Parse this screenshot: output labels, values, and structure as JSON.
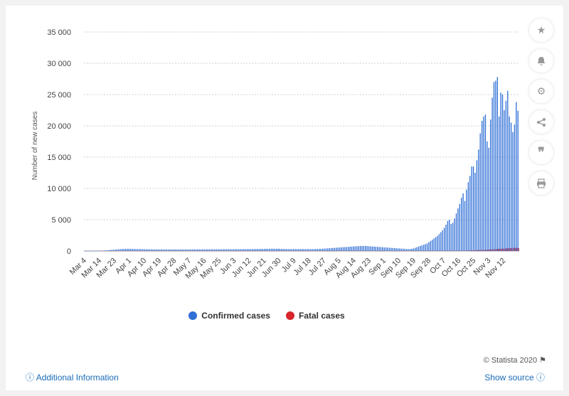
{
  "chart_data": {
    "type": "bar",
    "ylabel": "Number of new cases",
    "ylim": [
      0,
      35000
    ],
    "yticks": [
      0,
      5000,
      10000,
      15000,
      20000,
      25000,
      30000,
      35000
    ],
    "ytick_labels": [
      "0",
      "5 000",
      "10 000",
      "15 000",
      "20 000",
      "25 000",
      "30 000",
      "35 000"
    ],
    "xtick_labels": [
      "Mar 4",
      "Mar 14",
      "Mar 23",
      "Apr 1",
      "Apr 10",
      "Apr 19",
      "Apr 28",
      "May 7",
      "May 16",
      "May 25",
      "Jun 3",
      "Jun 12",
      "Jun 21",
      "Jun 30",
      "Jul 9",
      "Jul 18",
      "Jul 27",
      "Aug 5",
      "Aug 14",
      "Aug 23",
      "Sep 1",
      "Sep 10",
      "Sep 19",
      "Sep 28",
      "Oct 7",
      "Oct 16",
      "Oct 25",
      "Nov 3",
      "Nov 12"
    ],
    "grid": true,
    "legend_position": "bottom",
    "series": [
      {
        "name": "Confirmed cases",
        "color": "#2f6fd6",
        "values": [
          5,
          5,
          8,
          10,
          12,
          15,
          20,
          25,
          30,
          40,
          50,
          60,
          80,
          100,
          120,
          150,
          180,
          200,
          220,
          250,
          280,
          300,
          320,
          330,
          340,
          350,
          350,
          340,
          330,
          320,
          310,
          300,
          300,
          300,
          290,
          280,
          270,
          270,
          260,
          260,
          250,
          250,
          250,
          250,
          250,
          250,
          250,
          250,
          240,
          240,
          240,
          240,
          240,
          240,
          240,
          240,
          240,
          240,
          240,
          250,
          250,
          250,
          250,
          260,
          260,
          260,
          260,
          260,
          260,
          260,
          260,
          260,
          270,
          270,
          270,
          270,
          270,
          270,
          270,
          270,
          270,
          280,
          280,
          280,
          280,
          280,
          280,
          280,
          280,
          280,
          280,
          280,
          280,
          290,
          290,
          300,
          300,
          300,
          310,
          310,
          320,
          320,
          330,
          330,
          340,
          340,
          350,
          350,
          350,
          360,
          360,
          360,
          360,
          360,
          350,
          340,
          330,
          320,
          310,
          300,
          300,
          300,
          300,
          300,
          300,
          300,
          300,
          300,
          300,
          300,
          300,
          300,
          300,
          300,
          310,
          320,
          330,
          340,
          350,
          360,
          380,
          400,
          420,
          440,
          460,
          480,
          500,
          520,
          540,
          560,
          580,
          600,
          620,
          640,
          660,
          680,
          700,
          720,
          740,
          760,
          780,
          800,
          800,
          800,
          800,
          780,
          760,
          740,
          720,
          700,
          680,
          660,
          640,
          620,
          600,
          580,
          560,
          540,
          520,
          500,
          480,
          460,
          440,
          420,
          400,
          380,
          360,
          340,
          320,
          300,
          300,
          350,
          400,
          500,
          600,
          700,
          800,
          900,
          1000,
          1100,
          1200,
          1400,
          1600,
          1800,
          2000,
          2200,
          2400,
          2700,
          3000,
          3300,
          3700,
          4200,
          4800,
          5000,
          4300,
          4500,
          5200,
          6000,
          6800,
          7500,
          8500,
          9200,
          8000,
          9800,
          11000,
          12000,
          13500,
          13500,
          12500,
          14500,
          16200,
          18800,
          20800,
          21500,
          21800,
          17500,
          16500,
          21000,
          24500,
          27000,
          27200,
          27800,
          21500,
          25300,
          25000,
          22500,
          24000,
          25600,
          21500,
          20500,
          19000,
          20200,
          23800,
          22400
        ]
      },
      {
        "name": "Fatal cases",
        "color": "#d8262c",
        "values": [
          0,
          0,
          0,
          0,
          0,
          0,
          0,
          0,
          0,
          1,
          1,
          1,
          2,
          2,
          3,
          3,
          4,
          5,
          6,
          7,
          8,
          9,
          10,
          10,
          11,
          12,
          12,
          12,
          12,
          11,
          11,
          11,
          10,
          10,
          10,
          10,
          9,
          9,
          9,
          9,
          9,
          9,
          9,
          9,
          9,
          9,
          9,
          9,
          9,
          9,
          9,
          9,
          9,
          9,
          9,
          9,
          9,
          9,
          9,
          9,
          9,
          9,
          9,
          9,
          9,
          9,
          9,
          9,
          9,
          9,
          9,
          9,
          9,
          9,
          9,
          9,
          9,
          9,
          9,
          9,
          9,
          9,
          9,
          9,
          9,
          9,
          9,
          9,
          9,
          9,
          9,
          9,
          9,
          9,
          9,
          9,
          9,
          9,
          9,
          9,
          9,
          9,
          9,
          9,
          9,
          9,
          9,
          9,
          9,
          9,
          9,
          9,
          9,
          9,
          9,
          9,
          9,
          9,
          9,
          9,
          9,
          9,
          9,
          9,
          9,
          9,
          9,
          9,
          9,
          9,
          9,
          9,
          9,
          9,
          9,
          9,
          9,
          9,
          9,
          9,
          9,
          9,
          9,
          9,
          9,
          9,
          9,
          9,
          9,
          9,
          9,
          9,
          9,
          9,
          9,
          9,
          9,
          9,
          9,
          9,
          9,
          9,
          9,
          9,
          9,
          9,
          9,
          9,
          9,
          9,
          9,
          9,
          9,
          9,
          9,
          9,
          9,
          9,
          9,
          9,
          9,
          9,
          9,
          9,
          9,
          9,
          9,
          9,
          9,
          9,
          9,
          9,
          9,
          9,
          9,
          10,
          10,
          11,
          11,
          12,
          12,
          13,
          13,
          14,
          15,
          16,
          17,
          18,
          19,
          20,
          21,
          22,
          23,
          25,
          27,
          30,
          33,
          36,
          40,
          45,
          50,
          55,
          60,
          70,
          80,
          90,
          100,
          110,
          120,
          130,
          140,
          150,
          160,
          170,
          180,
          200,
          220,
          240,
          260,
          280,
          300,
          320,
          340,
          360,
          380,
          400,
          420,
          440,
          460,
          480,
          500,
          500,
          480,
          460,
          440,
          420,
          400,
          420,
          440,
          460,
          480,
          500,
          520,
          540,
          560,
          580,
          600,
          650
        ]
      }
    ]
  },
  "legend": {
    "confirmed_label": "Confirmed cases",
    "confirmed_color": "#2f6fd6",
    "fatal_label": "Fatal cases",
    "fatal_color": "#d8262c"
  },
  "sidebar_icons": [
    "star-icon",
    "bell-icon",
    "gear-icon",
    "share-icon",
    "quote-icon",
    "print-icon"
  ],
  "footer": {
    "credit": "© Statista 2020",
    "additional_info": "Additional Information",
    "show_source": "Show source"
  }
}
